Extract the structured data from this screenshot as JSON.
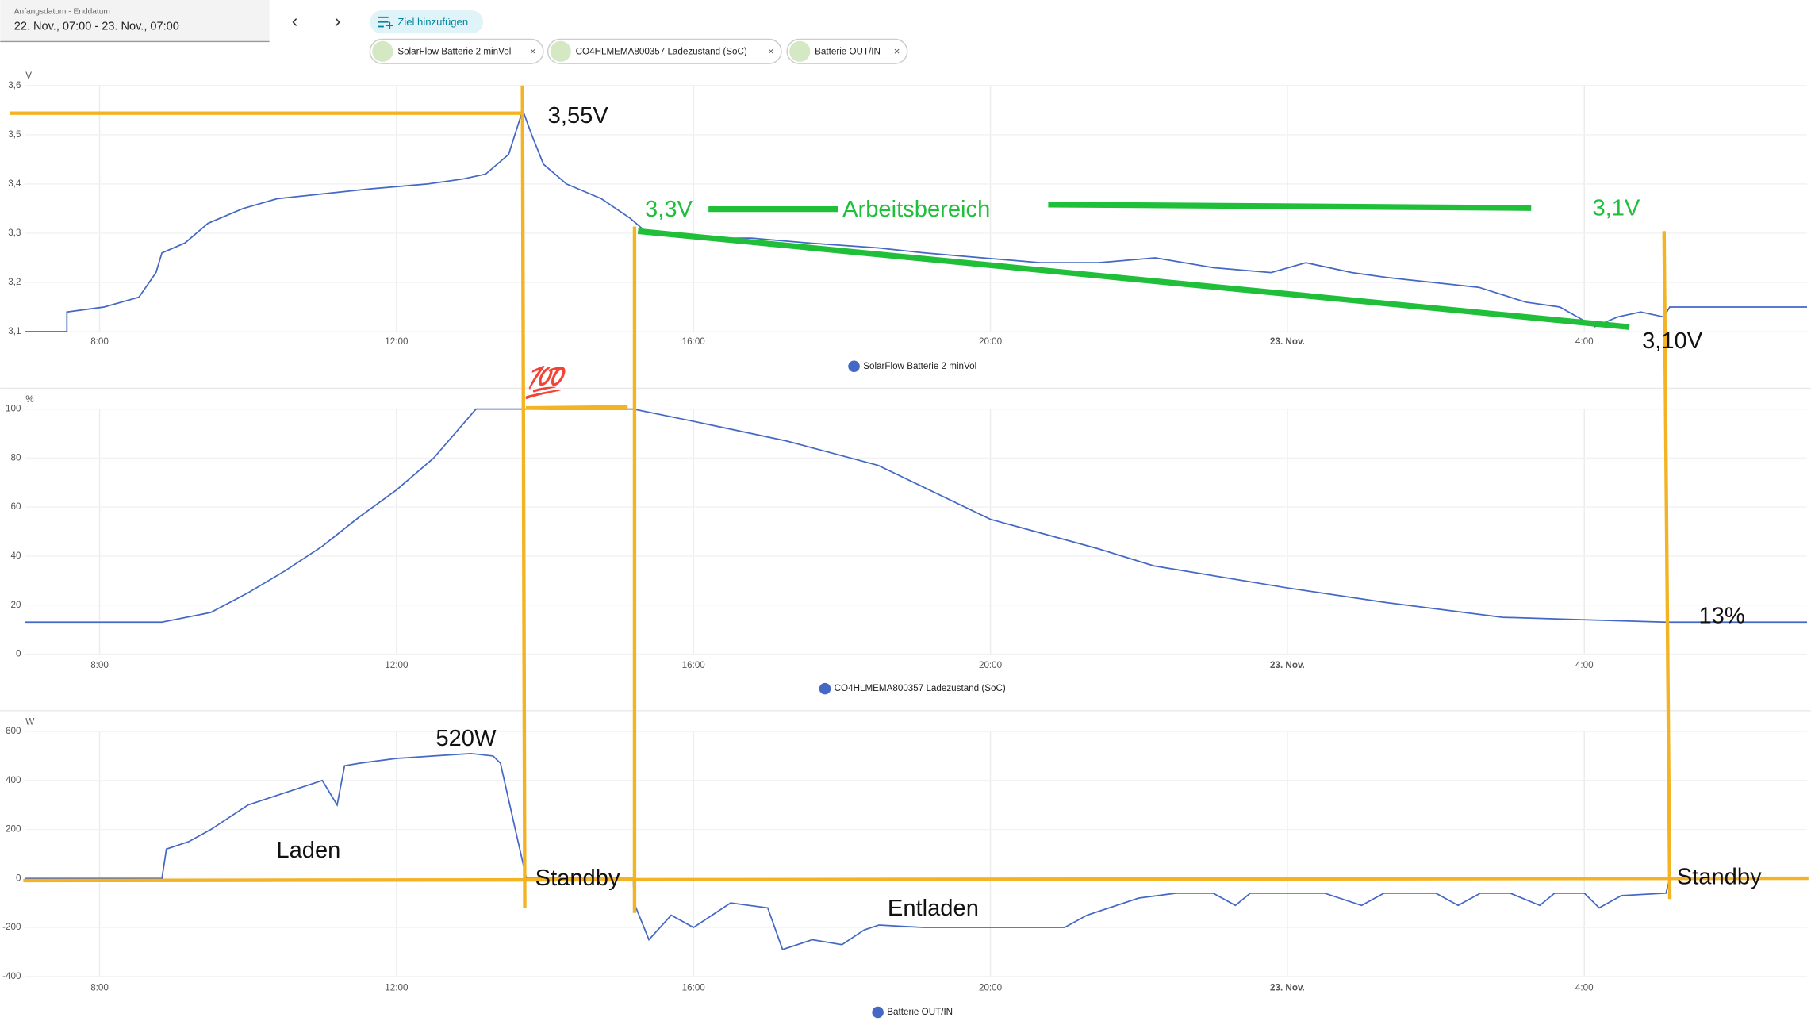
{
  "header": {
    "date_label": "Anfangsdatum - Enddatum",
    "date_range": "22. Nov., 07:00 - 23. Nov., 07:00",
    "prev": "‹",
    "next": "›",
    "add_target": "Ziel hinzufügen",
    "chips": [
      "SolarFlow Batterie 2 minVol",
      "CO4HLMEMA800357 Ladezustand (SoC)",
      "Batterie OUT/IN"
    ]
  },
  "chart_data": [
    {
      "type": "line",
      "y_unit": "V",
      "xlim": [
        7,
        31
      ],
      "xticks": [
        {
          "value": 8,
          "label": "8:00"
        },
        {
          "value": 12,
          "label": "12:00"
        },
        {
          "value": 16,
          "label": "16:00"
        },
        {
          "value": 20,
          "label": "20:00"
        },
        {
          "value": 24,
          "label": "23. Nov."
        },
        {
          "value": 28,
          "label": "4:00"
        }
      ],
      "ylim": [
        3.1,
        3.6
      ],
      "yticks": [
        {
          "value": 3.1,
          "label": "3,1"
        },
        {
          "value": 3.2,
          "label": "3,2"
        },
        {
          "value": 3.3,
          "label": "3,3"
        },
        {
          "value": 3.4,
          "label": "3,4"
        },
        {
          "value": 3.5,
          "label": "3,5"
        },
        {
          "value": 3.6,
          "label": "3,6"
        }
      ],
      "grid": true,
      "x": [
        7.0,
        7.56,
        7.56,
        8.06,
        8.53,
        8.76,
        8.84,
        9.15,
        9.46,
        9.93,
        10.39,
        11.02,
        11.64,
        12.42,
        12.89,
        13.2,
        13.51,
        13.7,
        13.82,
        13.98,
        14.29,
        14.76,
        15.15,
        15.38,
        16.0,
        16.78,
        17.56,
        18.49,
        19.11,
        19.89,
        20.67,
        21.45,
        22.22,
        23.0,
        23.78,
        24.25,
        24.87,
        25.34,
        25.96,
        26.58,
        27.21,
        27.67,
        28.14,
        28.45,
        28.76,
        29.07,
        29.15,
        31.0
      ],
      "series": [
        {
          "name": "SolarFlow Batterie 2 minVol",
          "color": "#4468c4",
          "values": [
            3.1,
            3.1,
            3.14,
            3.15,
            3.17,
            3.22,
            3.26,
            3.28,
            3.32,
            3.35,
            3.37,
            3.38,
            3.39,
            3.4,
            3.41,
            3.42,
            3.46,
            3.55,
            3.5,
            3.44,
            3.4,
            3.37,
            3.33,
            3.3,
            3.29,
            3.29,
            3.28,
            3.27,
            3.26,
            3.25,
            3.24,
            3.24,
            3.25,
            3.23,
            3.22,
            3.24,
            3.22,
            3.21,
            3.2,
            3.19,
            3.16,
            3.15,
            3.11,
            3.13,
            3.14,
            3.13,
            3.15,
            3.15
          ]
        }
      ],
      "annotations": [
        "3,55V",
        "3,3V",
        "Arbeitsbereich",
        "3,1V",
        "3,10V"
      ]
    },
    {
      "type": "line",
      "y_unit": "%",
      "xlim": [
        7,
        31
      ],
      "xticks": [
        {
          "value": 8,
          "label": "8:00"
        },
        {
          "value": 12,
          "label": "12:00"
        },
        {
          "value": 16,
          "label": "16:00"
        },
        {
          "value": 20,
          "label": "20:00"
        },
        {
          "value": 24,
          "label": "23. Nov."
        },
        {
          "value": 28,
          "label": "4:00"
        }
      ],
      "ylim": [
        0,
        100
      ],
      "yticks": [
        0,
        20,
        40,
        60,
        80,
        100
      ],
      "grid": true,
      "x": [
        7,
        8.84,
        9.5,
        10,
        10.5,
        11,
        11.5,
        12,
        12.5,
        13.07,
        15.19,
        16,
        17.25,
        18.49,
        20,
        21.45,
        22.2,
        24,
        25.34,
        26.9,
        28,
        29.1,
        31
      ],
      "series": [
        {
          "name": "CO4HLMEMA800357 Ladezustand (SoC)",
          "color": "#4468c4",
          "values": [
            13,
            13,
            17,
            25,
            34,
            44,
            56,
            67,
            80,
            100,
            100,
            95,
            87,
            77,
            55,
            43,
            36,
            27,
            21,
            15,
            14,
            13,
            13
          ]
        }
      ],
      "annotations": [
        "💯",
        "13%"
      ]
    },
    {
      "type": "line",
      "y_unit": "W",
      "xlim": [
        7,
        31
      ],
      "xticks": [
        {
          "value": 8,
          "label": "8:00"
        },
        {
          "value": 12,
          "label": "12:00"
        },
        {
          "value": 16,
          "label": "16:00"
        },
        {
          "value": 20,
          "label": "20:00"
        },
        {
          "value": 24,
          "label": "23. Nov."
        },
        {
          "value": 28,
          "label": "4:00"
        }
      ],
      "ylim": [
        -400,
        600
      ],
      "yticks": [
        -400,
        -200,
        0,
        200,
        400,
        600
      ],
      "grid": true,
      "x": [
        7,
        8.84,
        8.9,
        9.2,
        9.5,
        10,
        10.5,
        11,
        11.2,
        11.3,
        11.5,
        12,
        12.5,
        13,
        13.3,
        13.4,
        13.6,
        13.75,
        15.19,
        15.2,
        15.4,
        15.7,
        16,
        16.5,
        17,
        17.2,
        17.6,
        18,
        18.3,
        18.5,
        19.1,
        20,
        21,
        21.3,
        22,
        22.5,
        23,
        23.3,
        23.5,
        24,
        24.5,
        25,
        25.3,
        26,
        26.3,
        26.6,
        27,
        27.4,
        27.6,
        28,
        28.2,
        28.5,
        29.1,
        29.15,
        31
      ],
      "series": [
        {
          "name": "Batterie OUT/IN",
          "color": "#4468c4",
          "values": [
            0,
            0,
            120,
            150,
            200,
            300,
            350,
            400,
            300,
            460,
            470,
            490,
            500,
            510,
            500,
            470,
            200,
            0,
            0,
            -100,
            -250,
            -150,
            -200,
            -100,
            -120,
            -290,
            -250,
            -270,
            -210,
            -190,
            -200,
            -200,
            -200,
            -150,
            -80,
            -60,
            -60,
            -110,
            -60,
            -60,
            -60,
            -110,
            -60,
            -60,
            -110,
            -60,
            -60,
            -110,
            -60,
            -60,
            -120,
            -70,
            -60,
            0,
            0
          ]
        }
      ],
      "annotations": [
        "520W",
        "Laden",
        "Standby",
        "Entladen",
        "Standby"
      ]
    }
  ]
}
